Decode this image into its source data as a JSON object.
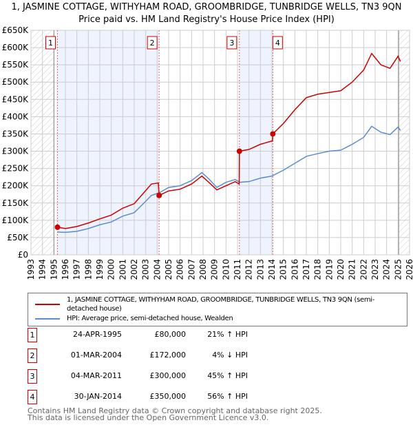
{
  "chart_data": {
    "type": "line",
    "title": "1, JASMINE COTTAGE, WITHYHAM ROAD, GROOMBRIDGE, TUNBRIDGE WELLS, TN3 9QN",
    "subtitle": "Price paid vs. HM Land Registry's House Price Index (HPI)",
    "xlim": [
      1993,
      2026
    ],
    "ylim": [
      0,
      650000
    ],
    "x_ticks": [
      "1993",
      "1994",
      "1995",
      "1996",
      "1997",
      "1998",
      "1999",
      "2000",
      "2001",
      "2002",
      "2003",
      "2004",
      "2005",
      "2006",
      "2007",
      "2008",
      "2009",
      "2010",
      "2011",
      "2012",
      "2013",
      "2014",
      "2015",
      "2016",
      "2017",
      "2018",
      "2019",
      "2020",
      "2021",
      "2022",
      "2023",
      "2024",
      "2025",
      "2026"
    ],
    "y_ticks": [
      {
        "v": 0,
        "label": "£0"
      },
      {
        "v": 50000,
        "label": "£50K"
      },
      {
        "v": 100000,
        "label": "£100K"
      },
      {
        "v": 150000,
        "label": "£150K"
      },
      {
        "v": 200000,
        "label": "£200K"
      },
      {
        "v": 250000,
        "label": "£250K"
      },
      {
        "v": 300000,
        "label": "£300K"
      },
      {
        "v": 350000,
        "label": "£350K"
      },
      {
        "v": 400000,
        "label": "£400K"
      },
      {
        "v": 450000,
        "label": "£450K"
      },
      {
        "v": 500000,
        "label": "£500K"
      },
      {
        "v": 550000,
        "label": "£550K"
      },
      {
        "v": 600000,
        "label": "£600K"
      },
      {
        "v": 650000,
        "label": "£650K"
      }
    ],
    "grid": true,
    "hatched_ranges": [
      [
        1993,
        1995
      ],
      [
        2025.05,
        2026
      ]
    ],
    "shaded_ranges": [
      [
        1995.31,
        2004.17
      ],
      [
        2011.17,
        2014.08
      ]
    ],
    "series": [
      {
        "name": "1, JASMINE COTTAGE, WITHYHAM ROAD, GROOMBRIDGE, TUNBRIDGE WELLS, TN3 9QN (semi-detached house)",
        "color": "#cc0000",
        "x": [
          1995.31,
          1996,
          1997,
          1998,
          1999,
          2000,
          2001,
          2002,
          2003,
          2003.5,
          2004.1,
          2004.17,
          2005,
          2006,
          2007,
          2007.9,
          2008.5,
          2009.2,
          2010,
          2010.8,
          2011.15,
          2011.17,
          2012,
          2013,
          2014.05,
          2014.08,
          2015,
          2016,
          2017,
          2018,
          2019,
          2020,
          2021,
          2022,
          2022.7,
          2023.5,
          2024.3,
          2025,
          2025.2
        ],
        "y": [
          80000,
          76000,
          82000,
          92000,
          104000,
          115000,
          135000,
          148000,
          186000,
          205000,
          208000,
          172000,
          185000,
          190000,
          205000,
          228000,
          210000,
          188000,
          200000,
          212000,
          205000,
          300000,
          305000,
          320000,
          330000,
          350000,
          380000,
          420000,
          455000,
          465000,
          470000,
          475000,
          500000,
          535000,
          583000,
          550000,
          540000,
          575000,
          560000
        ]
      },
      {
        "name": "HPI: Average price, semi-detached house, Wealden",
        "color": "#5b8bd0",
        "x": [
          1995.31,
          1996,
          1997,
          1998,
          1999,
          2000,
          2001,
          2002,
          2003,
          2003.5,
          2004.2,
          2005,
          2006,
          2007,
          2007.9,
          2008.5,
          2009.2,
          2010,
          2010.8,
          2011.2,
          2012,
          2013,
          2014,
          2015,
          2016,
          2017,
          2018,
          2019,
          2020,
          2021,
          2022,
          2022.7,
          2023.5,
          2024.3,
          2025,
          2025.2
        ],
        "y": [
          66000,
          65000,
          68000,
          76000,
          87000,
          95000,
          112000,
          122000,
          155000,
          172000,
          180000,
          195000,
          200000,
          215000,
          238000,
          220000,
          195000,
          210000,
          218000,
          210000,
          212000,
          222000,
          228000,
          245000,
          265000,
          285000,
          293000,
          300000,
          303000,
          320000,
          340000,
          372000,
          355000,
          348000,
          370000,
          360000
        ]
      }
    ],
    "sales": [
      {
        "n": "1",
        "x": 1995.31,
        "y": 80000
      },
      {
        "n": "2",
        "x": 2004.17,
        "y": 172000
      },
      {
        "n": "3",
        "x": 2011.17,
        "y": 300000
      },
      {
        "n": "4",
        "x": 2014.08,
        "y": 350000
      }
    ]
  },
  "legend": {
    "property": "1, JASMINE COTTAGE, WITHYHAM ROAD, GROOMBRIDGE, TUNBRIDGE WELLS, TN3 9QN (semi-detached house)",
    "hpi": "HPI: Average price, semi-detached house, Wealden"
  },
  "table": [
    {
      "n": "1",
      "date": "24-APR-1995",
      "price": "£80,000",
      "hpi": "21% ↑ HPI"
    },
    {
      "n": "2",
      "date": "01-MAR-2004",
      "price": "£172,000",
      "hpi": "4% ↓ HPI"
    },
    {
      "n": "3",
      "date": "04-MAR-2011",
      "price": "£300,000",
      "hpi": "45% ↑ HPI"
    },
    {
      "n": "4",
      "date": "30-JAN-2014",
      "price": "£350,000",
      "hpi": "56% ↑ HPI"
    }
  ],
  "footer": {
    "line1": "Contains HM Land Registry data © Crown copyright and database right 2025.",
    "line2": "This data is licensed under the Open Government Licence v3.0."
  }
}
